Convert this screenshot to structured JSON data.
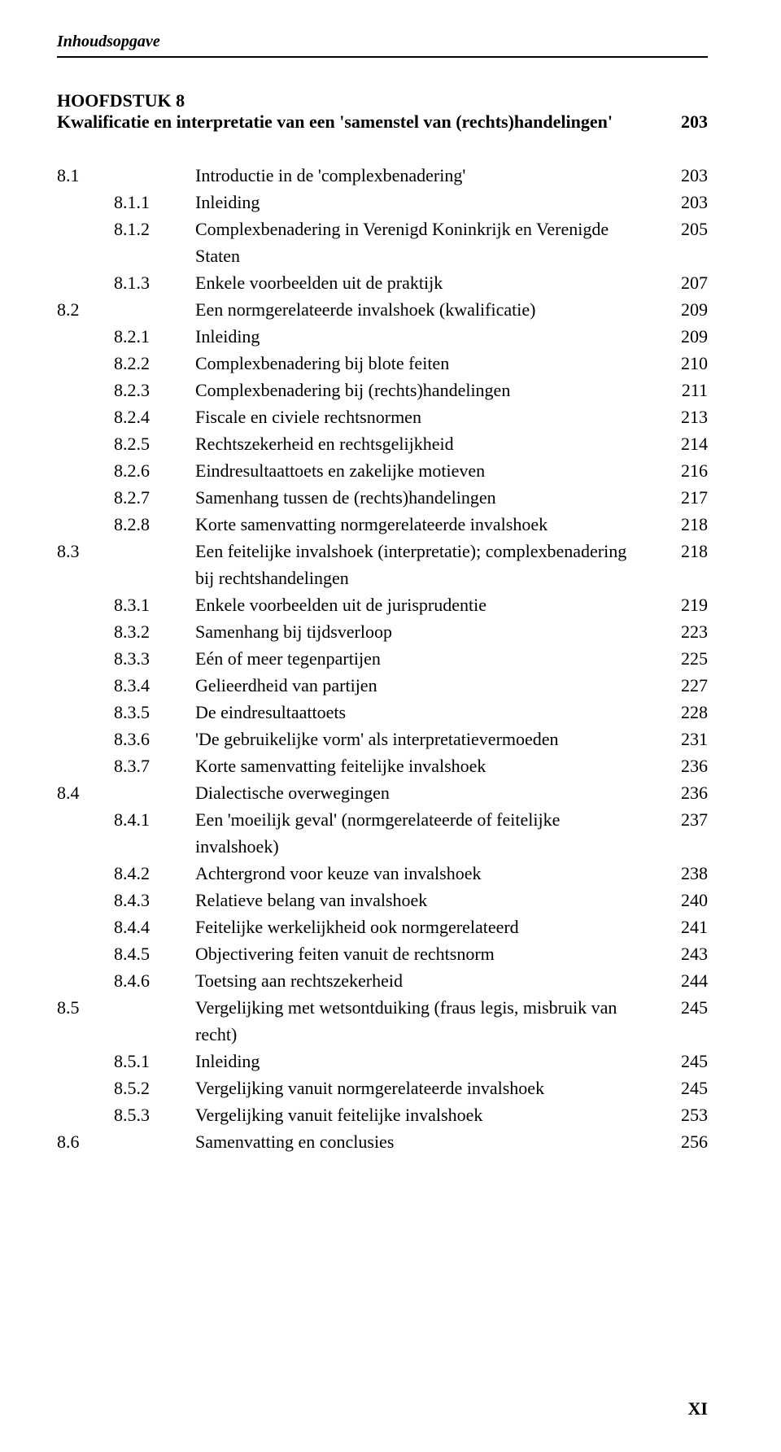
{
  "header": "Inhoudsopgave",
  "chapter": {
    "label": "HOOFDSTUK 8",
    "title": "Kwalificatie en interpretatie van een 'samenstel van (rechts)handelingen'",
    "page": "203"
  },
  "entries": [
    {
      "n1": "8.1",
      "n2": "",
      "text": "Introductie in de 'complexbenadering'",
      "page": "203"
    },
    {
      "n1": "",
      "n2": "8.1.1",
      "text": "Inleiding",
      "page": "203"
    },
    {
      "n1": "",
      "n2": "8.1.2",
      "text": "Complexbenadering in Verenigd Koninkrijk en Verenigde Staten",
      "page": "205"
    },
    {
      "n1": "",
      "n2": "8.1.3",
      "text": "Enkele voorbeelden uit de praktijk",
      "page": "207"
    },
    {
      "n1": "8.2",
      "n2": "",
      "text": "Een normgerelateerde invalshoek (kwalificatie)",
      "page": "209"
    },
    {
      "n1": "",
      "n2": "8.2.1",
      "text": "Inleiding",
      "page": "209"
    },
    {
      "n1": "",
      "n2": "8.2.2",
      "text": "Complexbenadering bij blote feiten",
      "page": "210"
    },
    {
      "n1": "",
      "n2": "8.2.3",
      "text": "Complexbenadering bij (rechts)handelingen",
      "page": "211"
    },
    {
      "n1": "",
      "n2": "8.2.4",
      "text": "Fiscale en civiele rechtsnormen",
      "page": "213"
    },
    {
      "n1": "",
      "n2": "8.2.5",
      "text": "Rechtszekerheid en rechtsgelijkheid",
      "page": "214"
    },
    {
      "n1": "",
      "n2": "8.2.6",
      "text": "Eindresultaattoets en zakelijke motieven",
      "page": "216"
    },
    {
      "n1": "",
      "n2": "8.2.7",
      "text": "Samenhang tussen de (rechts)handelingen",
      "page": "217"
    },
    {
      "n1": "",
      "n2": "8.2.8",
      "text": "Korte samenvatting normgerelateerde invalshoek",
      "page": "218"
    },
    {
      "n1": "8.3",
      "n2": "",
      "text": "Een feitelijke invalshoek (interpretatie); complexbenadering bij rechtshandelingen",
      "page": "218"
    },
    {
      "n1": "",
      "n2": "8.3.1",
      "text": "Enkele voorbeelden uit de jurisprudentie",
      "page": "219"
    },
    {
      "n1": "",
      "n2": "8.3.2",
      "text": "Samenhang bij tijdsverloop",
      "page": "223"
    },
    {
      "n1": "",
      "n2": "8.3.3",
      "text": "Eén of meer tegenpartijen",
      "page": "225"
    },
    {
      "n1": "",
      "n2": "8.3.4",
      "text": "Gelieerdheid van partijen",
      "page": "227"
    },
    {
      "n1": "",
      "n2": "8.3.5",
      "text": "De eindresultaattoets",
      "page": "228"
    },
    {
      "n1": "",
      "n2": "8.3.6",
      "text": "'De gebruikelijke vorm' als interpretatievermoeden",
      "page": "231"
    },
    {
      "n1": "",
      "n2": "8.3.7",
      "text": "Korte samenvatting feitelijke invalshoek",
      "page": "236"
    },
    {
      "n1": "8.4",
      "n2": "",
      "text": "Dialectische overwegingen",
      "page": "236"
    },
    {
      "n1": "",
      "n2": "8.4.1",
      "text": "Een 'moeilijk geval' (normgerelateerde of feitelijke invalshoek)",
      "page": "237"
    },
    {
      "n1": "",
      "n2": "8.4.2",
      "text": "Achtergrond voor keuze van invalshoek",
      "page": "238"
    },
    {
      "n1": "",
      "n2": "8.4.3",
      "text": "Relatieve belang van invalshoek",
      "page": "240"
    },
    {
      "n1": "",
      "n2": "8.4.4",
      "text": "Feitelijke werkelijkheid ook normgerelateerd",
      "page": "241"
    },
    {
      "n1": "",
      "n2": "8.4.5",
      "text": "Objectivering feiten vanuit de rechtsnorm",
      "page": "243"
    },
    {
      "n1": "",
      "n2": "8.4.6",
      "text": "Toetsing aan rechtszekerheid",
      "page": "244"
    },
    {
      "n1": "8.5",
      "n2": "",
      "text": "Vergelijking met wetsontduiking (fraus legis, misbruik van recht)",
      "page": "245"
    },
    {
      "n1": "",
      "n2": "8.5.1",
      "text": "Inleiding",
      "page": "245"
    },
    {
      "n1": "",
      "n2": "8.5.2",
      "text": "Vergelijking vanuit normgerelateerde invalshoek",
      "page": "245"
    },
    {
      "n1": "",
      "n2": "8.5.3",
      "text": "Vergelijking vanuit feitelijke invalshoek",
      "page": "253"
    },
    {
      "n1": "8.6",
      "n2": "",
      "text": "Samenvatting en conclusies",
      "page": "256"
    }
  ],
  "footerPage": "XI"
}
